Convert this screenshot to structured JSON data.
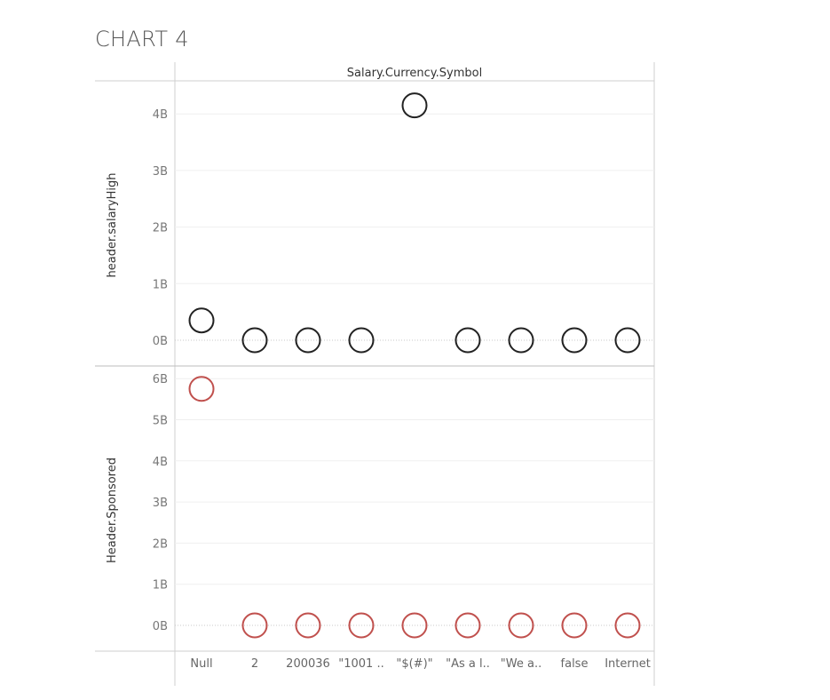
{
  "title": "CHART 4",
  "chart_data": {
    "type": "scatter",
    "column_header": "Salary.Currency.Symbol",
    "categories": [
      "Null",
      "2",
      "200036",
      "\"1001 ..",
      "\"$(#)\"",
      "\"As a l..",
      "\"We a..",
      "false",
      "Internet"
    ],
    "panels": [
      {
        "ylabel": "header.salaryHigh",
        "color": "#222222",
        "ylim": [
          0,
          4.3
        ],
        "ticks": [
          "0B",
          "1B",
          "2B",
          "3B",
          "4B"
        ],
        "tick_values": [
          0,
          1,
          2,
          3,
          4
        ],
        "values": [
          0.35,
          0,
          0,
          0,
          4.15,
          0,
          0,
          0,
          0
        ]
      },
      {
        "ylabel": "Header.Sponsored",
        "color": "#c0504d",
        "ylim": [
          0,
          6.2
        ],
        "ticks": [
          "0B",
          "1B",
          "2B",
          "3B",
          "4B",
          "5B",
          "6B"
        ],
        "tick_values": [
          0,
          1,
          2,
          3,
          4,
          5,
          6
        ],
        "values": [
          5.75,
          0,
          0,
          0,
          0,
          0,
          0,
          0,
          0
        ]
      }
    ],
    "grid": true,
    "unit": "B"
  }
}
